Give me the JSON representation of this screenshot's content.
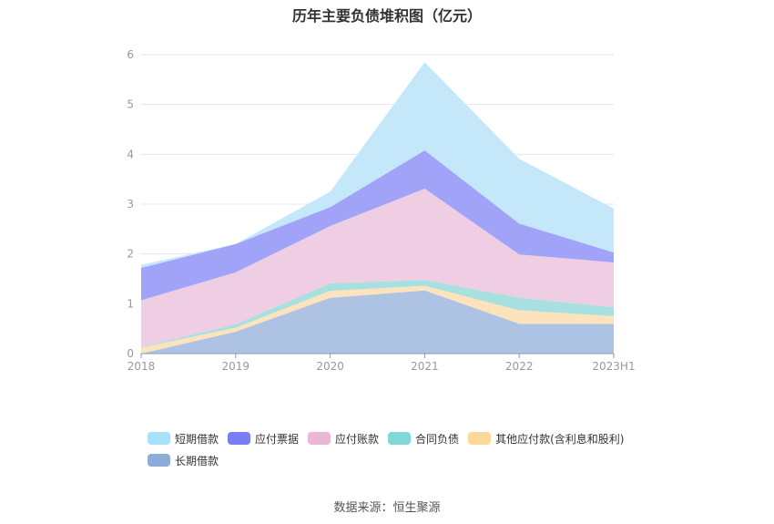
{
  "chart_data": {
    "type": "area",
    "stacked": true,
    "title": "历年主要负债堆积图（亿元）",
    "x": [
      "2018",
      "2019",
      "2020",
      "2021",
      "2022",
      "2023H1"
    ],
    "ylim": [
      0,
      6
    ],
    "yticks": [
      "0",
      "1",
      "2",
      "3",
      "4",
      "5",
      "6"
    ],
    "grid": true,
    "legend_position": "bottom",
    "series": [
      {
        "name": "长期借款",
        "color": "#8eacd8",
        "fill": "#aec3e3",
        "values": [
          0.0,
          0.44,
          1.12,
          1.27,
          0.6,
          0.6
        ]
      },
      {
        "name": "其他应付款(含利息和股利)",
        "color": "#fdd999",
        "fill": "#fde3bc",
        "values": [
          0.12,
          0.08,
          0.14,
          0.09,
          0.27,
          0.15
        ]
      },
      {
        "name": "合同负债",
        "color": "#80d8d8",
        "fill": "#a8e0e0",
        "values": [
          0.01,
          0.07,
          0.15,
          0.12,
          0.25,
          0.18
        ]
      },
      {
        "name": "应付账款",
        "color": "#ebb7d8",
        "fill": "#efcde3",
        "values": [
          0.94,
          1.04,
          1.15,
          1.83,
          0.87,
          0.9
        ]
      },
      {
        "name": "应付票据",
        "color": "#7a7ef5",
        "fill": "#a0a3f7",
        "values": [
          0.65,
          0.57,
          0.38,
          0.77,
          0.62,
          0.2
        ]
      },
      {
        "name": "短期借款",
        "color": "#a8e1fb",
        "fill": "#c4e8fa",
        "values": [
          0.06,
          0.0,
          0.31,
          1.77,
          1.3,
          0.88
        ]
      }
    ],
    "legend_order": [
      5,
      4,
      3,
      2,
      1,
      0
    ]
  },
  "source": "数据来源：恒生聚源"
}
